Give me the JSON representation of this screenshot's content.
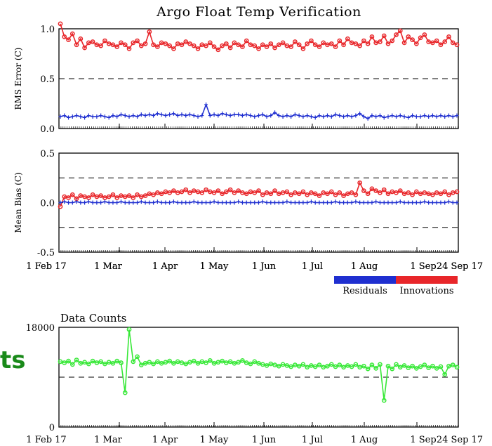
{
  "side_text": "ts",
  "colors": {
    "residuals": "#1f2fd0",
    "innovations": "#e8262a",
    "counts": "#37e837",
    "axis": "#000000",
    "side_text": "#1a8a1a"
  },
  "chart_data": [
    {
      "type": "line",
      "title": "Argo Float Temp Verification",
      "ylabel": "RMS Error (C)",
      "ylim": [
        0,
        1
      ],
      "yticks": [
        "0.0",
        "0.5",
        "1.0"
      ],
      "reference_lines": [
        0.5
      ],
      "x_tick_labels": [
        "1 Feb 17",
        "1 Mar",
        "1 Apr",
        "1 May",
        "1 Jun",
        "1 Jul",
        "1 Aug",
        "1 Sep",
        "24 Sep 17"
      ],
      "series": [
        {
          "name": "Innovations",
          "color": "#e8262a",
          "marker": "circle",
          "values": [
            1.05,
            0.92,
            0.89,
            0.95,
            0.84,
            0.9,
            0.81,
            0.86,
            0.87,
            0.84,
            0.83,
            0.88,
            0.85,
            0.84,
            0.82,
            0.86,
            0.84,
            0.8,
            0.86,
            0.88,
            0.83,
            0.85,
            0.97,
            0.84,
            0.82,
            0.86,
            0.85,
            0.83,
            0.8,
            0.85,
            0.84,
            0.87,
            0.85,
            0.83,
            0.8,
            0.84,
            0.83,
            0.86,
            0.82,
            0.79,
            0.83,
            0.85,
            0.81,
            0.86,
            0.84,
            0.82,
            0.88,
            0.84,
            0.83,
            0.8,
            0.84,
            0.82,
            0.85,
            0.81,
            0.84,
            0.86,
            0.83,
            0.82,
            0.87,
            0.84,
            0.8,
            0.85,
            0.88,
            0.84,
            0.82,
            0.86,
            0.84,
            0.85,
            0.82,
            0.88,
            0.84,
            0.9,
            0.86,
            0.85,
            0.83,
            0.88,
            0.85,
            0.92,
            0.86,
            0.87,
            0.93,
            0.85,
            0.88,
            0.94,
            0.98,
            0.86,
            0.92,
            0.89,
            0.85,
            0.91,
            0.94,
            0.87,
            0.86,
            0.88,
            0.84,
            0.87,
            0.92,
            0.86,
            0.84
          ]
        },
        {
          "name": "Residuals",
          "color": "#1f2fd0",
          "marker": "cross",
          "values": [
            0.12,
            0.13,
            0.11,
            0.12,
            0.13,
            0.12,
            0.11,
            0.13,
            0.12,
            0.12,
            0.13,
            0.12,
            0.11,
            0.13,
            0.12,
            0.14,
            0.13,
            0.12,
            0.13,
            0.12,
            0.14,
            0.13,
            0.14,
            0.13,
            0.15,
            0.14,
            0.13,
            0.14,
            0.15,
            0.13,
            0.14,
            0.13,
            0.14,
            0.13,
            0.12,
            0.13,
            0.24,
            0.13,
            0.14,
            0.13,
            0.15,
            0.14,
            0.13,
            0.14,
            0.14,
            0.13,
            0.14,
            0.13,
            0.12,
            0.13,
            0.14,
            0.12,
            0.13,
            0.16,
            0.13,
            0.12,
            0.13,
            0.12,
            0.14,
            0.13,
            0.12,
            0.13,
            0.12,
            0.11,
            0.13,
            0.12,
            0.13,
            0.12,
            0.14,
            0.13,
            0.12,
            0.13,
            0.12,
            0.13,
            0.15,
            0.12,
            0.1,
            0.13,
            0.12,
            0.13,
            0.11,
            0.12,
            0.13,
            0.12,
            0.13,
            0.12,
            0.11,
            0.13,
            0.12,
            0.12,
            0.13,
            0.12,
            0.13,
            0.12,
            0.13,
            0.12,
            0.13,
            0.12,
            0.13
          ]
        }
      ]
    },
    {
      "type": "line",
      "ylabel": "Mean Bias (C)",
      "ylim": [
        -0.5,
        0.5
      ],
      "yticks": [
        "-0.5",
        "0.0",
        "0.5"
      ],
      "reference_lines": [
        0.25,
        -0.25
      ],
      "x_tick_labels": [
        "1 Feb 17",
        "1 Mar",
        "1 Apr",
        "1 May",
        "1 Jun",
        "1 Jul",
        "1 Aug",
        "1 Sep",
        "24 Sep 17"
      ],
      "legend": [
        "Residuals",
        "Innovations"
      ],
      "legend_position": "bottom-right",
      "series": [
        {
          "name": "Innovations",
          "color": "#e8262a",
          "marker": "circle",
          "values": [
            -0.04,
            0.06,
            0.05,
            0.08,
            0.04,
            0.07,
            0.06,
            0.05,
            0.08,
            0.06,
            0.07,
            0.05,
            0.06,
            0.08,
            0.05,
            0.07,
            0.06,
            0.07,
            0.05,
            0.08,
            0.06,
            0.07,
            0.09,
            0.08,
            0.1,
            0.09,
            0.11,
            0.1,
            0.12,
            0.1,
            0.11,
            0.13,
            0.1,
            0.12,
            0.11,
            0.1,
            0.13,
            0.11,
            0.1,
            0.12,
            0.09,
            0.11,
            0.13,
            0.1,
            0.12,
            0.1,
            0.09,
            0.11,
            0.1,
            0.12,
            0.08,
            0.1,
            0.09,
            0.12,
            0.09,
            0.1,
            0.11,
            0.08,
            0.1,
            0.09,
            0.11,
            0.08,
            0.1,
            0.09,
            0.07,
            0.1,
            0.09,
            0.11,
            0.08,
            0.1,
            0.07,
            0.09,
            0.1,
            0.08,
            0.2,
            0.12,
            0.09,
            0.14,
            0.12,
            0.1,
            0.13,
            0.09,
            0.11,
            0.1,
            0.12,
            0.09,
            0.1,
            0.08,
            0.11,
            0.09,
            0.1,
            0.09,
            0.08,
            0.1,
            0.09,
            0.11,
            0.08,
            0.1,
            0.11
          ]
        },
        {
          "name": "Residuals",
          "color": "#1f2fd0",
          "marker": "cross",
          "values": [
            0.0,
            0.01,
            0.0,
            0.0,
            0.01,
            0.0,
            0.0,
            0.01,
            0.0,
            0.0,
            0.0,
            0.01,
            0.0,
            0.0,
            0.0,
            0.01,
            0.0,
            0.0,
            0.0,
            0.0,
            0.01,
            0.0,
            0.0,
            0.0,
            0.01,
            0.0,
            0.0,
            0.0,
            0.01,
            0.0,
            0.0,
            0.0,
            0.0,
            0.01,
            0.0,
            0.0,
            0.0,
            0.0,
            0.01,
            0.0,
            0.0,
            0.0,
            0.0,
            0.0,
            0.01,
            0.0,
            0.0,
            0.0,
            0.0,
            0.0,
            0.01,
            0.0,
            0.0,
            0.0,
            0.0,
            0.0,
            0.01,
            0.0,
            0.0,
            0.0,
            0.0,
            0.0,
            0.01,
            0.0,
            0.0,
            0.0,
            0.0,
            0.0,
            0.01,
            0.0,
            0.0,
            0.0,
            0.0,
            0.01,
            0.0,
            0.0,
            0.0,
            0.0,
            0.01,
            0.0,
            0.0,
            0.0,
            0.0,
            0.0,
            0.01,
            0.0,
            0.0,
            0.0,
            0.0,
            0.0,
            0.01,
            0.0,
            0.0,
            0.0,
            0.0,
            0.0,
            0.01,
            0.0,
            0.0
          ]
        }
      ]
    },
    {
      "type": "line",
      "title": "Data Counts",
      "ylim": [
        0,
        18000
      ],
      "yticks": [
        "0",
        "18000"
      ],
      "reference_lines": [
        9000
      ],
      "x_tick_labels": [
        "1 Feb 17",
        "1 Mar",
        "1 Apr",
        "1 May",
        "1 Jun",
        "1 Jul",
        "1 Aug",
        "1 Sep",
        "24 Sep 17"
      ],
      "series": [
        {
          "name": "Data Counts",
          "color": "#37e837",
          "marker": "circle",
          "values": [
            11800,
            11600,
            11900,
            11300,
            12100,
            11500,
            11700,
            11400,
            11900,
            11600,
            11800,
            11400,
            11700,
            11500,
            11900,
            11600,
            6200,
            17600,
            11800,
            12700,
            11200,
            11500,
            11700,
            11400,
            11800,
            11500,
            11700,
            11900,
            11500,
            11800,
            11600,
            11400,
            11700,
            11900,
            11500,
            11800,
            11600,
            12000,
            11500,
            11700,
            11900,
            11600,
            11800,
            11500,
            11700,
            12000,
            11600,
            11400,
            11800,
            11500,
            11300,
            11100,
            11400,
            11200,
            11000,
            11300,
            11100,
            10900,
            11200,
            11000,
            11300,
            10800,
            11100,
            10900,
            11200,
            10800,
            11000,
            11300,
            10900,
            11200,
            10800,
            11100,
            10900,
            11300,
            10800,
            11000,
            10500,
            11200,
            10600,
            11300,
            4800,
            11000,
            10500,
            11300,
            10800,
            11100,
            10700,
            11000,
            10600,
            10900,
            11200,
            10700,
            11000,
            10600,
            10900,
            9500,
            11000,
            11200,
            10800
          ]
        }
      ]
    }
  ]
}
